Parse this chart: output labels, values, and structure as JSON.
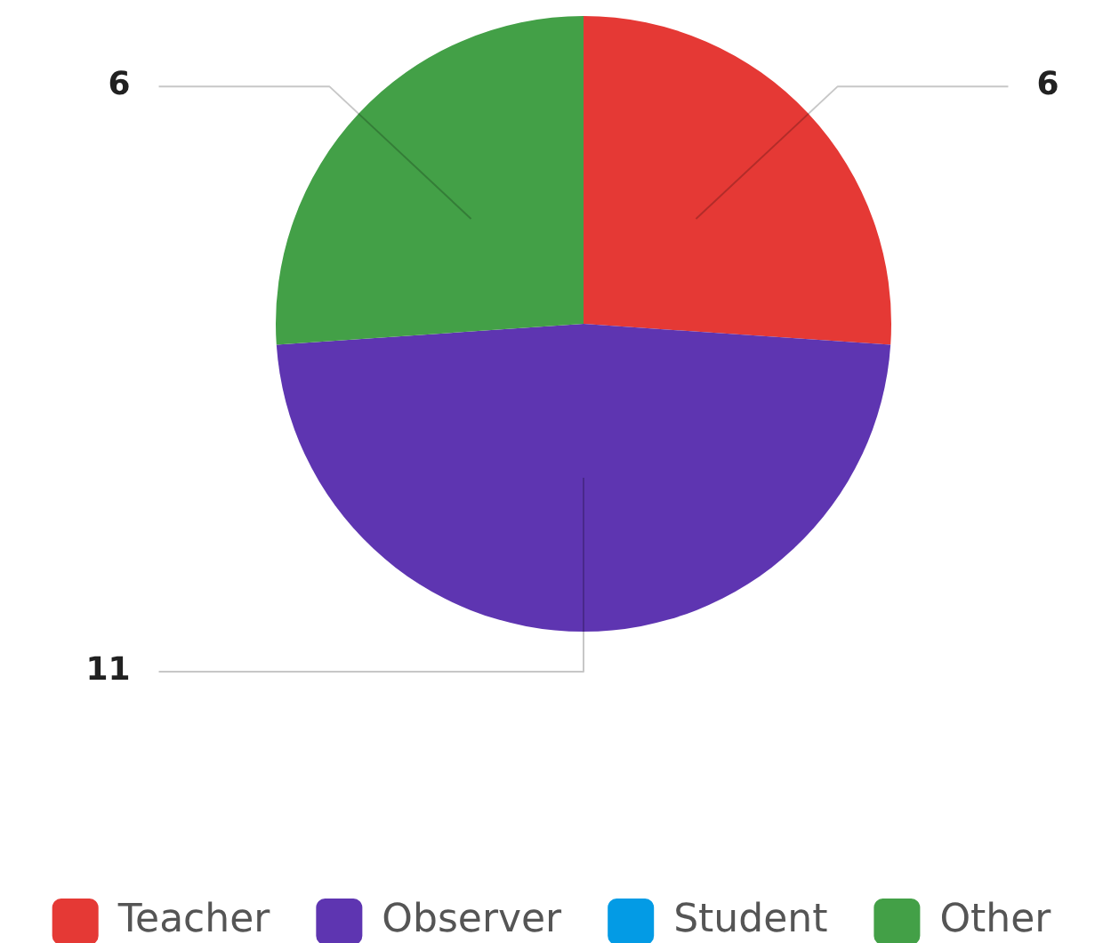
{
  "chart_data": {
    "type": "pie",
    "categories": [
      "Teacher",
      "Observer",
      "Student",
      "Other"
    ],
    "values": [
      6,
      11,
      0,
      6
    ],
    "colors": [
      "#e53935",
      "#5e35b1",
      "#039be5",
      "#43a047"
    ],
    "value_labels": [
      "6",
      "11",
      null,
      "6"
    ],
    "legend": "bottom"
  }
}
